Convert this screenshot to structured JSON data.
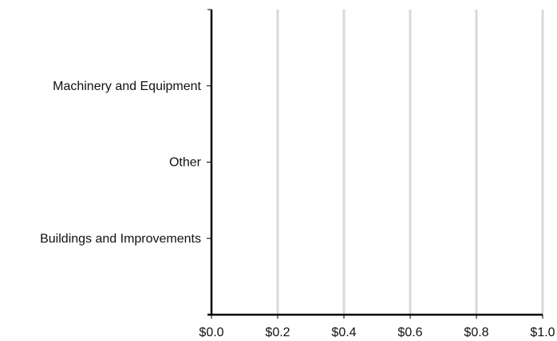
{
  "chart_data": {
    "type": "bar",
    "orientation": "horizontal",
    "categories": [
      "Machinery and Equipment",
      "Other",
      "Buildings and Improvements"
    ],
    "values": [
      0,
      0,
      0
    ],
    "x_tick_labels": [
      "$0.0",
      "$0.2",
      "$0.4",
      "$0.6",
      "$0.8",
      "$1.0"
    ],
    "x_ticks": [
      0,
      0.2,
      0.4,
      0.6,
      0.8,
      1.0
    ],
    "xlim": [
      0,
      1.0
    ],
    "grid": "vertical",
    "legend": "none",
    "colors": {
      "grid": "#d9d9d9",
      "axis": "#000000",
      "text": "#111111"
    }
  }
}
